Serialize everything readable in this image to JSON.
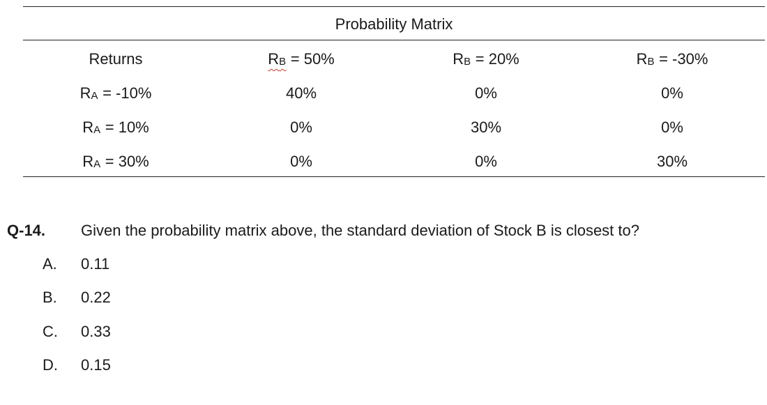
{
  "table": {
    "title": "Probability Matrix",
    "header": {
      "returns": "Returns",
      "col1": {
        "var": "R",
        "sub": "B",
        "rest": " = 50%"
      },
      "col2": {
        "var": "R",
        "sub": "B",
        "rest": " = 20%"
      },
      "col3": {
        "var": "R",
        "sub": "B",
        "rest": " = -30%"
      }
    },
    "rows": [
      {
        "label": {
          "var": "R",
          "sub": "A",
          "rest": " = -10%"
        },
        "values": [
          "40%",
          "0%",
          "0%"
        ]
      },
      {
        "label": {
          "var": "R",
          "sub": "A",
          "rest": " = 10%"
        },
        "values": [
          "0%",
          "30%",
          "0%"
        ]
      },
      {
        "label": {
          "var": "R",
          "sub": "A",
          "rest": " = 30%"
        },
        "values": [
          "0%",
          "0%",
          "30%"
        ]
      }
    ]
  },
  "question": {
    "number": "Q-14.",
    "text": "Given the probability matrix above, the standard deviation of Stock B is closest to?",
    "options": [
      {
        "letter": "A.",
        "value": "0.11"
      },
      {
        "letter": "B.",
        "value": "0.22"
      },
      {
        "letter": "C.",
        "value": "0.33"
      },
      {
        "letter": "D.",
        "value": "0.15"
      }
    ]
  }
}
